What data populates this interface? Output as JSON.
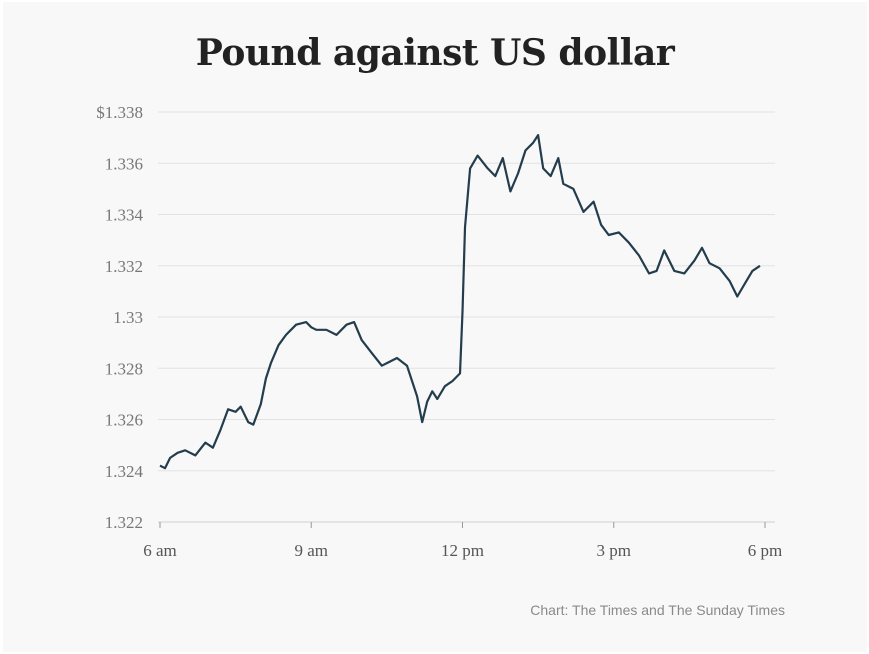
{
  "chart_data": {
    "type": "line",
    "title": "Pound against US dollar",
    "source": "Chart: The Times and The Sunday Times",
    "xlabel": "",
    "ylabel": "",
    "grid": true,
    "ylim": [
      1.322,
      1.338
    ],
    "xlim": [
      6,
      18
    ],
    "y_ticks": [
      1.322,
      1.324,
      1.326,
      1.328,
      1.33,
      1.332,
      1.334,
      1.336,
      1.338
    ],
    "y_tick_labels": [
      "1.322",
      "1.324",
      "1.326",
      "1.328",
      "1.33",
      "1.332",
      "1.334",
      "1.336",
      "$1.338"
    ],
    "x_ticks": [
      6,
      9,
      12,
      15,
      18
    ],
    "x_tick_labels": [
      "6 am",
      "9 am",
      "12 pm",
      "3 pm",
      "6 pm"
    ],
    "line_color": "#233d4d",
    "series": [
      {
        "x": [
          6.0,
          6.1,
          6.2,
          6.35,
          6.5,
          6.7,
          6.9,
          7.05,
          7.2,
          7.35,
          7.5,
          7.6,
          7.75,
          7.85,
          8.0,
          8.1,
          8.2,
          8.35,
          8.5,
          8.7,
          8.9,
          9.0,
          9.1,
          9.3,
          9.5,
          9.7,
          9.85,
          10.0,
          10.2,
          10.4,
          10.5,
          10.7,
          10.9,
          11.1,
          11.2,
          11.3,
          11.4,
          11.5,
          11.65,
          11.8,
          11.95,
          12.0,
          12.05,
          12.15,
          12.3,
          12.5,
          12.65,
          12.8,
          12.95,
          13.1,
          13.25,
          13.4,
          13.5,
          13.6,
          13.75,
          13.9,
          14.0,
          14.2,
          14.4,
          14.6,
          14.75,
          14.9,
          15.1,
          15.3,
          15.5,
          15.7,
          15.85,
          16.0,
          16.2,
          16.4,
          16.6,
          16.75,
          16.9,
          17.1,
          17.3,
          17.45,
          17.6,
          17.75,
          17.9
        ],
        "y": [
          1.3242,
          1.3241,
          1.3245,
          1.3247,
          1.3248,
          1.3246,
          1.3251,
          1.3249,
          1.3256,
          1.3264,
          1.3263,
          1.3265,
          1.3259,
          1.3258,
          1.3266,
          1.3276,
          1.3282,
          1.3289,
          1.3293,
          1.3297,
          1.3298,
          1.3296,
          1.3295,
          1.3295,
          1.3293,
          1.3297,
          1.3298,
          1.3291,
          1.3286,
          1.3281,
          1.3282,
          1.3284,
          1.3281,
          1.3269,
          1.3259,
          1.3267,
          1.3271,
          1.3268,
          1.3273,
          1.3275,
          1.3278,
          1.3302,
          1.3335,
          1.3358,
          1.3363,
          1.3358,
          1.3355,
          1.3362,
          1.3349,
          1.3356,
          1.3365,
          1.3368,
          1.3371,
          1.3358,
          1.3355,
          1.3362,
          1.3352,
          1.335,
          1.3341,
          1.3345,
          1.3336,
          1.3332,
          1.3333,
          1.3329,
          1.3324,
          1.3317,
          1.3318,
          1.3326,
          1.3318,
          1.3317,
          1.3322,
          1.3327,
          1.3321,
          1.3319,
          1.3314,
          1.3308,
          1.3313,
          1.3318,
          1.332
        ]
      }
    ]
  }
}
